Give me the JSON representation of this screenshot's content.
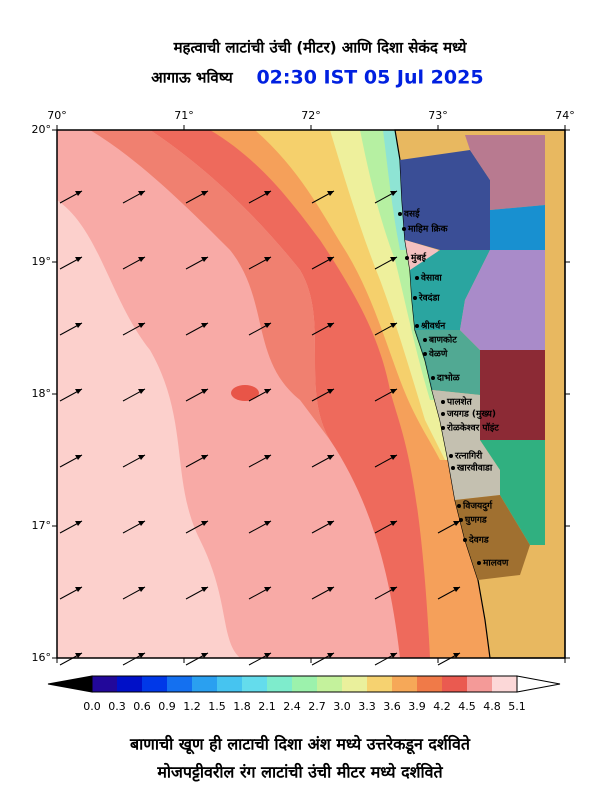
{
  "header": {
    "title": "महत्वाची लाटांची उंची (मीटर) आणि दिशा सेकंद मध्ये",
    "subtitle": "आगाऊ भविष्य",
    "time": "02:30 IST 05 Jul 2025"
  },
  "map": {
    "lon_labels": [
      "70°",
      "71°",
      "72°",
      "73°",
      "74°"
    ],
    "lat_labels": [
      "20°",
      "19°",
      "18°",
      "17°",
      "16°"
    ],
    "places": [
      "वसई",
      "माहिम क्रिक",
      "मुंबई",
      "वेसावा",
      "रेवदंडा",
      "श्रीवर्धन",
      "बाणकोट",
      "वेळणे",
      "दाभोळ",
      "पालशेत",
      "जयगड (मुख्य)",
      "रोळकेश्वर पॉइंट",
      "रत्नागिरी",
      "खारवीवाडा",
      "विजयदुर्ग",
      "घुणगड",
      "देवगड",
      "मालवण"
    ]
  },
  "colorbar": {
    "labels": [
      "0.0",
      "0.3",
      "0.6",
      "0.9",
      "1.2",
      "1.5",
      "1.8",
      "2.1",
      "2.4",
      "2.7",
      "3.0",
      "3.3",
      "3.6",
      "3.9",
      "4.2",
      "4.5",
      "4.8",
      "5.1"
    ],
    "colors": [
      "#22089a",
      "#0010c8",
      "#0038e8",
      "#1470f0",
      "#2aa0f0",
      "#46c4f0",
      "#64dcec",
      "#7eeccc",
      "#9cf2ac",
      "#c4f29c",
      "#eaf09c",
      "#f6d270",
      "#f6a858",
      "#f07a48",
      "#ea5a50",
      "#f49a98",
      "#fcd8d8"
    ]
  },
  "footer": {
    "line1": "बाणाची खूण ही लाटाची दिशा अंश मध्ये उत्तरेकडून दर्शविते",
    "line2": "मोजपट्टीवरील रंग लाटांची उंची मीटर मध्ये दर्शविते"
  }
}
